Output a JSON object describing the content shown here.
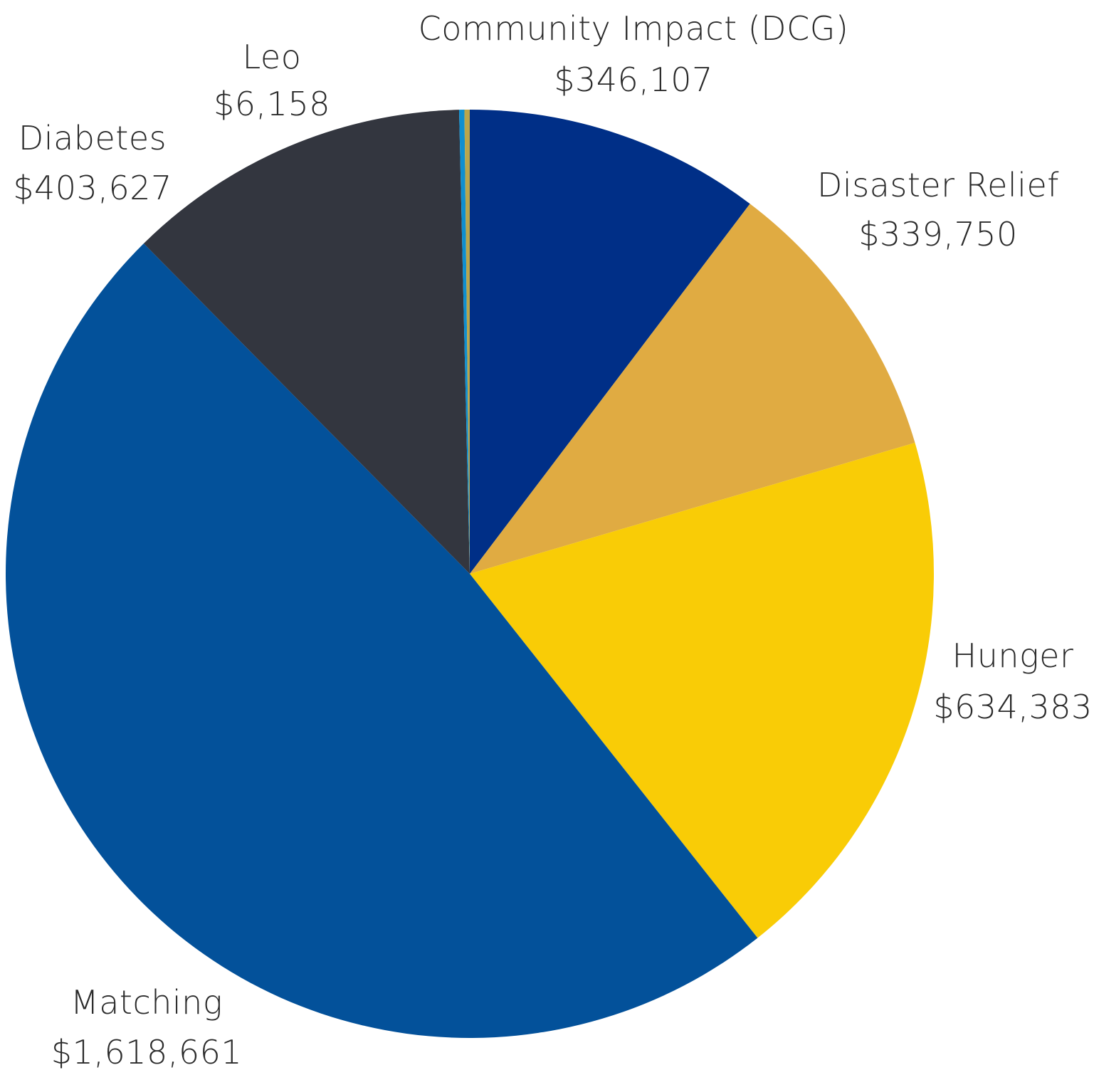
{
  "chart_data": {
    "type": "pie",
    "title": "",
    "start_angle_deg": 0,
    "direction": "clockwise",
    "legend": "none",
    "slices": [
      {
        "label": "Community Impact (DCG)",
        "value": 346107,
        "display": "$346,107",
        "color": "#002f87"
      },
      {
        "label": "Disaster Relief",
        "value": 339750,
        "display": "$339,750",
        "color": "#e0ab42"
      },
      {
        "label": "Hunger",
        "value": 634383,
        "display": "$634,383",
        "color": "#f9cc06"
      },
      {
        "label": "Matching",
        "value": 1618661,
        "display": "$1,618,661",
        "color": "#03519a"
      },
      {
        "label": "Diabetes",
        "value": 403627,
        "display": "$403,627",
        "color": "#33363f"
      },
      {
        "label": "",
        "value": 6158,
        "display": "",
        "color": "#0f8fd0"
      },
      {
        "label": "Leo",
        "value": 6158,
        "display": "$6,158",
        "color": "#b9a64c"
      }
    ]
  }
}
